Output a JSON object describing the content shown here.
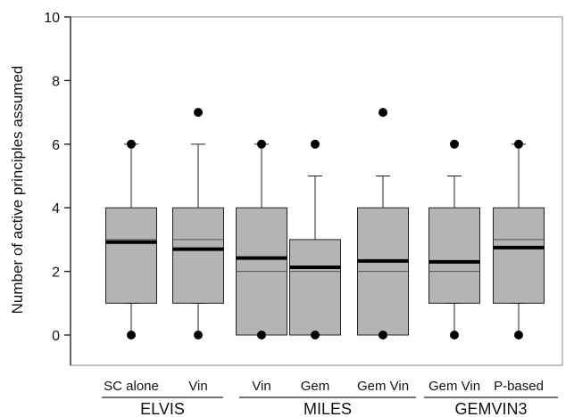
{
  "chart_data": {
    "type": "boxplot",
    "title": "",
    "xlabel": "",
    "ylabel": "Number of active principles assumed",
    "ylim": [
      0,
      10
    ],
    "yticks": [
      "0",
      "2",
      "4",
      "6",
      "8",
      "10"
    ],
    "grid": false,
    "legend": "none",
    "colors": {
      "box_fill": "#b4b4b4",
      "stroke": "#222222",
      "median": "#000000",
      "outlier": "#000000"
    },
    "groups": [
      {
        "label": "ELVIS",
        "categories": [
          "SC alone",
          "Vin"
        ]
      },
      {
        "label": "MILES",
        "categories": [
          "Vin",
          "Gem",
          "Gem Vin"
        ]
      },
      {
        "label": "GEMVIN3",
        "categories": [
          "Gem Vin",
          "P-based"
        ]
      }
    ],
    "boxes": [
      {
        "category": "SC alone",
        "group": "ELVIS",
        "whisker_low": 1,
        "q1": 1,
        "median": 3,
        "q3": 4,
        "whisker_high": 6,
        "mean": 2.92,
        "outliers": [
          0,
          6
        ]
      },
      {
        "category": "Vin",
        "group": "ELVIS",
        "whisker_low": 1,
        "q1": 1,
        "median": 3,
        "q3": 4,
        "whisker_high": 6,
        "mean": 2.7,
        "outliers": [
          0,
          7
        ]
      },
      {
        "category": "Vin",
        "group": "MILES",
        "whisker_low": 0,
        "q1": 0,
        "median": 2,
        "q3": 4,
        "whisker_high": 6,
        "mean": 2.42,
        "outliers": [
          0,
          6
        ]
      },
      {
        "category": "Gem",
        "group": "MILES",
        "whisker_low": 0,
        "q1": 0,
        "median": 2,
        "q3": 3,
        "whisker_high": 5,
        "mean": 2.13,
        "outliers": [
          0,
          6
        ]
      },
      {
        "category": "Gem Vin",
        "group": "MILES",
        "whisker_low": 0,
        "q1": 0,
        "median": 2,
        "q3": 4,
        "whisker_high": 5,
        "mean": 2.33,
        "outliers": [
          0,
          7
        ]
      },
      {
        "category": "Gem Vin",
        "group": "GEMVIN3",
        "whisker_low": 1,
        "q1": 1,
        "median": 2,
        "q3": 4,
        "whisker_high": 5,
        "mean": 2.3,
        "outliers": [
          0,
          6
        ]
      },
      {
        "category": "P-based",
        "group": "GEMVIN3",
        "whisker_low": 1,
        "q1": 1,
        "median": 3,
        "q3": 4,
        "whisker_high": 6,
        "mean": 2.75,
        "outliers": [
          0,
          6
        ]
      }
    ]
  }
}
